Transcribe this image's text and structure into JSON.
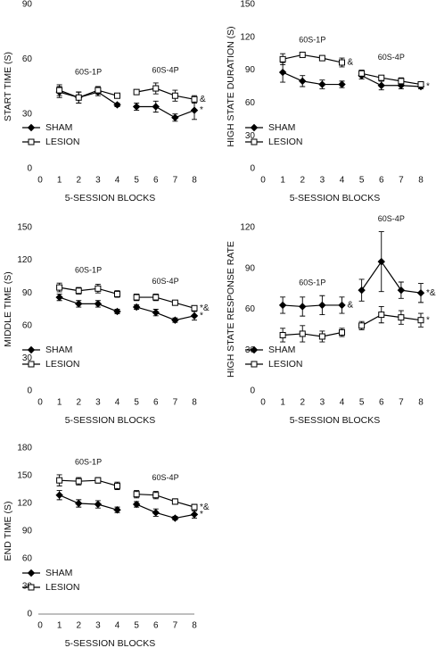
{
  "chart_data": [
    {
      "type": "line",
      "ylabel": "START TIME (S)",
      "xlabel": "5-SESSION BLOCKS",
      "xlim": [
        0,
        8
      ],
      "xticks": [
        0,
        1,
        2,
        3,
        4,
        5,
        6,
        7,
        8
      ],
      "ylim": [
        0,
        90
      ],
      "yticks": [
        0,
        30,
        60,
        90
      ],
      "legend": "lower left",
      "x": [
        1,
        2,
        3,
        4,
        5,
        6,
        7,
        8
      ],
      "phases": [
        {
          "label": "60S-1P",
          "from": 1,
          "to": 4
        },
        {
          "label": "60S-4P",
          "from": 5,
          "to": 8
        }
      ],
      "series": [
        {
          "name": "SHAM",
          "color": "#000000",
          "marker": "diamond",
          "filled": true,
          "values": [
            42,
            39,
            42,
            35,
            34,
            34,
            28,
            32
          ],
          "errors": [
            3,
            3,
            2,
            1,
            2,
            3,
            2,
            5
          ],
          "notes": [
            null,
            null,
            null,
            null,
            null,
            null,
            null,
            "*"
          ]
        },
        {
          "name": "LESION",
          "color": "#000000",
          "marker": "square",
          "filled": false,
          "values": [
            43,
            39,
            43,
            40,
            42,
            44,
            40,
            38
          ],
          "errors": [
            3,
            3,
            2,
            1,
            1,
            3,
            3,
            2
          ],
          "notes": [
            null,
            null,
            null,
            null,
            null,
            null,
            null,
            "&"
          ]
        }
      ]
    },
    {
      "type": "line",
      "ylabel": "HIGH STATE DURATION (S)",
      "xlabel": "5-SESSION BLOCKS",
      "xlim": [
        0,
        8
      ],
      "xticks": [
        0,
        1,
        2,
        3,
        4,
        5,
        6,
        7,
        8
      ],
      "ylim": [
        0,
        150
      ],
      "yticks": [
        0,
        30,
        60,
        90,
        120,
        150
      ],
      "legend": "lower left",
      "x": [
        1,
        2,
        3,
        4,
        5,
        6,
        7,
        8
      ],
      "phases": [
        {
          "label": "60S-1P",
          "from": 1,
          "to": 4
        },
        {
          "label": "60S-4P",
          "from": 5,
          "to": 8
        }
      ],
      "series": [
        {
          "name": "SHAM",
          "color": "#000000",
          "marker": "diamond",
          "filled": true,
          "values": [
            88,
            80,
            77,
            77,
            85,
            76,
            76,
            75
          ],
          "errors": [
            9,
            5,
            4,
            3,
            3,
            4,
            3,
            2
          ],
          "notes": [
            null,
            null,
            null,
            null,
            null,
            null,
            null,
            "*"
          ]
        },
        {
          "name": "LESION",
          "color": "#000000",
          "marker": "square",
          "filled": false,
          "values": [
            100,
            104,
            101,
            97,
            87,
            83,
            80,
            77
          ],
          "errors": [
            5,
            2,
            2,
            4,
            3,
            2,
            3,
            2
          ],
          "notes": [
            null,
            null,
            null,
            "&",
            null,
            null,
            null,
            null
          ]
        }
      ]
    },
    {
      "type": "line",
      "ylabel": "MIDDLE TIME (S)",
      "xlabel": "5-SESSION BLOCKS",
      "xlim": [
        0,
        8
      ],
      "xticks": [
        0,
        1,
        2,
        3,
        4,
        5,
        6,
        7,
        8
      ],
      "ylim": [
        0,
        150
      ],
      "yticks": [
        0,
        30,
        60,
        90,
        120,
        150
      ],
      "legend": "lower left",
      "x": [
        1,
        2,
        3,
        4,
        5,
        6,
        7,
        8
      ],
      "phases": [
        {
          "label": "60S-1P",
          "from": 1,
          "to": 4
        },
        {
          "label": "60S-4P",
          "from": 5,
          "to": 8
        }
      ],
      "series": [
        {
          "name": "SHAM",
          "color": "#000000",
          "marker": "diamond",
          "filled": true,
          "values": [
            86,
            80,
            80,
            73,
            77,
            72,
            65,
            69
          ],
          "errors": [
            3,
            3,
            3,
            2,
            2,
            3,
            2,
            4
          ],
          "notes": [
            null,
            null,
            null,
            null,
            null,
            null,
            null,
            "*"
          ]
        },
        {
          "name": "LESION",
          "color": "#000000",
          "marker": "square",
          "filled": false,
          "values": [
            95,
            92,
            94,
            89,
            86,
            86,
            81,
            76
          ],
          "errors": [
            4,
            3,
            4,
            3,
            3,
            3,
            2,
            2
          ],
          "notes": [
            null,
            null,
            null,
            null,
            null,
            null,
            null,
            "*&"
          ]
        }
      ]
    },
    {
      "type": "line",
      "ylabel": "HIGH STATE RESPONSE RATE",
      "xlabel": "5-SESSION BLOCKS",
      "xlim": [
        0,
        8
      ],
      "xticks": [
        0,
        1,
        2,
        3,
        4,
        5,
        6,
        7,
        8
      ],
      "ylim": [
        0,
        120
      ],
      "yticks": [
        0,
        30,
        60,
        90,
        120
      ],
      "legend": "lower left",
      "x": [
        1,
        2,
        3,
        4,
        5,
        6,
        7,
        8
      ],
      "phases": [
        {
          "label": "60S-1P",
          "from": 1,
          "to": 4
        },
        {
          "label": "60S-4P",
          "from": 5,
          "to": 8
        }
      ],
      "series": [
        {
          "name": "SHAM",
          "color": "#000000",
          "marker": "diamond",
          "filled": true,
          "values": [
            63,
            62,
            63,
            63,
            74,
            95,
            74,
            72
          ],
          "errors": [
            6,
            7,
            7,
            6,
            8,
            22,
            6,
            7
          ],
          "notes": [
            null,
            null,
            null,
            "&",
            null,
            null,
            null,
            "*&"
          ]
        },
        {
          "name": "LESION",
          "color": "#000000",
          "marker": "square",
          "filled": false,
          "values": [
            41,
            42,
            40,
            43,
            48,
            56,
            54,
            52
          ],
          "errors": [
            5,
            6,
            4,
            3,
            3,
            6,
            5,
            5
          ],
          "notes": [
            null,
            null,
            null,
            null,
            null,
            null,
            null,
            "*"
          ]
        }
      ]
    },
    {
      "type": "line",
      "ylabel": "END TIME (S)",
      "xlabel": "5-SESSION BLOCKS",
      "xlim": [
        0,
        8
      ],
      "xticks": [
        0,
        1,
        2,
        3,
        4,
        5,
        6,
        7,
        8
      ],
      "ylim": [
        0,
        180
      ],
      "yticks": [
        0,
        30,
        60,
        90,
        120,
        150,
        180
      ],
      "legend": "lower left",
      "axis_line": true,
      "x": [
        1,
        2,
        3,
        4,
        5,
        6,
        7,
        8
      ],
      "phases": [
        {
          "label": "60S-1P",
          "from": 1,
          "to": 4
        },
        {
          "label": "60S-4P",
          "from": 5,
          "to": 8
        }
      ],
      "series": [
        {
          "name": "SHAM",
          "color": "#000000",
          "marker": "diamond",
          "filled": true,
          "values": [
            129,
            120,
            119,
            113,
            119,
            110,
            104,
            108
          ],
          "errors": [
            5,
            4,
            4,
            3,
            3,
            4,
            2,
            4
          ],
          "notes": [
            null,
            null,
            null,
            null,
            null,
            null,
            null,
            "*"
          ]
        },
        {
          "name": "LESION",
          "color": "#000000",
          "marker": "square",
          "filled": false,
          "values": [
            145,
            144,
            145,
            139,
            130,
            129,
            122,
            116
          ],
          "errors": [
            6,
            4,
            3,
            4,
            4,
            4,
            3,
            3
          ],
          "notes": [
            null,
            null,
            null,
            null,
            null,
            null,
            null,
            "*&"
          ]
        }
      ]
    }
  ]
}
